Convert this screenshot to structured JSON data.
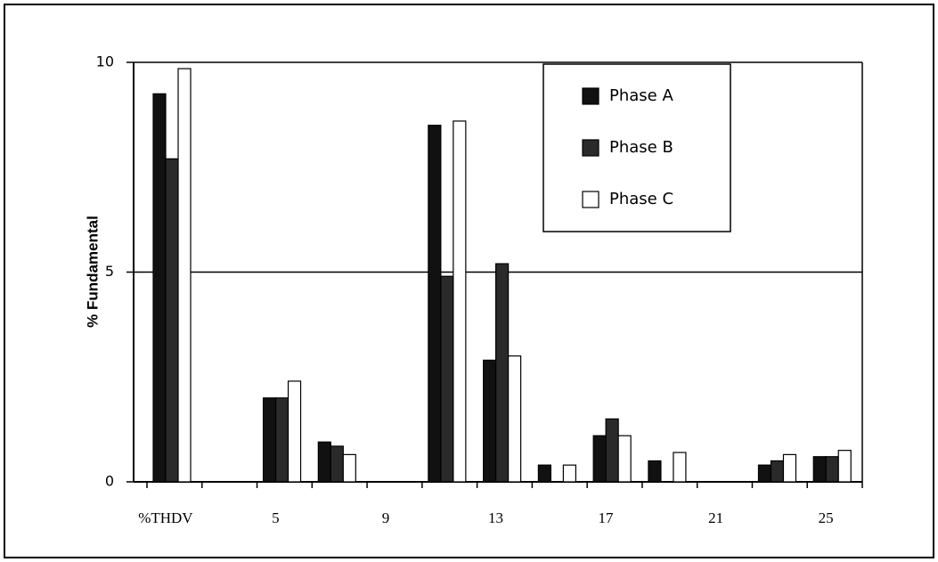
{
  "chart_data": {
    "type": "bar",
    "y_label": "% Fundamental",
    "categories": [
      "%THDV",
      null,
      "5",
      null,
      "9",
      null,
      "13",
      null,
      "17",
      null,
      "21",
      null,
      "25"
    ],
    "series": [
      {
        "name": "Phase A",
        "color": "#111111",
        "values": [
          9.25,
          null,
          2.0,
          0.95,
          null,
          8.5,
          2.9,
          0.4,
          1.1,
          0.5,
          null,
          0.4,
          0.6
        ]
      },
      {
        "name": "Phase B",
        "color": "#2a2a2a",
        "values": [
          7.7,
          null,
          2.0,
          0.85,
          null,
          4.9,
          5.2,
          null,
          1.5,
          null,
          null,
          0.5,
          0.6
        ]
      },
      {
        "name": "Phase C",
        "color": "#ffffff",
        "values": [
          9.85,
          null,
          2.4,
          0.65,
          null,
          8.6,
          3.0,
          0.4,
          1.1,
          0.7,
          null,
          0.65,
          0.75
        ]
      }
    ],
    "ylim": [
      0,
      10
    ],
    "yticks": [
      0,
      5,
      10
    ],
    "grid": true,
    "legend": "top-right"
  }
}
